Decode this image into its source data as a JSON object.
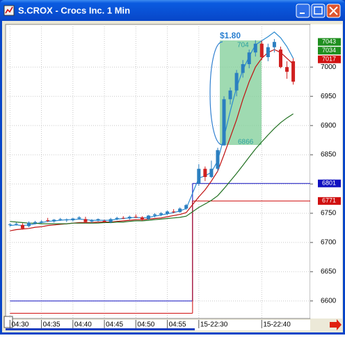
{
  "chart_data": {
    "type": "candlestick",
    "title": "S.CROX - Crocs Inc. 1 Min",
    "x": [
      0,
      1,
      2,
      3,
      4,
      5,
      6,
      7,
      8,
      9,
      10,
      11,
      12,
      13,
      14,
      15,
      16,
      17,
      18,
      19,
      20,
      21,
      22,
      23,
      24,
      25,
      26,
      27,
      28,
      30,
      31,
      32,
      33,
      34,
      35,
      36,
      37,
      38,
      39,
      40,
      41,
      42,
      43,
      44,
      45
    ],
    "open": [
      6730,
      6731,
      6730,
      6728,
      6733,
      6735,
      6738,
      6736,
      6739,
      6738,
      6738,
      6741,
      6740,
      6736,
      6738,
      6737,
      6735,
      6740,
      6742,
      6741,
      6744,
      6743,
      6740,
      6746,
      6748,
      6749,
      6753,
      6752,
      6758,
      6801,
      6826,
      6812,
      6826,
      6866,
      6945,
      6960,
      6990,
      7005,
      7025,
      7040,
      7017,
      7034,
      7030,
      7000,
      7010
    ],
    "high": [
      6733,
      6734,
      6733,
      6736,
      6737,
      6738,
      6742,
      6740,
      6742,
      6741,
      6742,
      6745,
      6744,
      6740,
      6741,
      6739,
      6742,
      6744,
      6745,
      6746,
      6748,
      6745,
      6747,
      6750,
      6752,
      6755,
      6757,
      6760,
      6766,
      6834,
      6830,
      6840,
      6862,
      6950,
      6965,
      6995,
      7012,
      7030,
      7046,
      7045,
      7040,
      7048,
      7035,
      7010,
      7015
    ],
    "low": [
      6727,
      6729,
      6722,
      6726,
      6731,
      6733,
      6735,
      6734,
      6737,
      6735,
      6736,
      6739,
      6733,
      6734,
      6736,
      6734,
      6733,
      6738,
      6740,
      6739,
      6742,
      6737,
      6739,
      6743,
      6745,
      6747,
      6750,
      6751,
      6756,
      6797,
      6805,
      6810,
      6822,
      6866,
      6936,
      6950,
      6982,
      6998,
      7018,
      7012,
      7010,
      7025,
      6998,
      6980,
      6970
    ],
    "close": [
      6731,
      6732,
      6724,
      6734,
      6735,
      6736,
      6737,
      6739,
      6740,
      6739,
      6741,
      6743,
      6735,
      6738,
      6740,
      6735,
      6740,
      6742,
      6741,
      6744,
      6743,
      6740,
      6746,
      6748,
      6750,
      6753,
      6752,
      6758,
      6764,
      6826,
      6812,
      6826,
      6858,
      6945,
      6960,
      6990,
      7005,
      7025,
      7040,
      7017,
      7034,
      7043,
      7000,
      6992,
      6975
    ],
    "up_color": "#2b7fc0",
    "down_color": "#d02020",
    "series": [
      {
        "color": "#2a8ad0",
        "values": [
          6729,
          6730,
          6729,
          6730,
          6732,
          6734,
          6736,
          6737,
          6738,
          6739,
          6739,
          6740,
          6739,
          6738,
          6738,
          6738,
          6738,
          6740,
          6741,
          6742,
          6743,
          6742,
          6743,
          6745,
          6747,
          6749,
          6751,
          6754,
          6758,
          6810,
          6814,
          6820,
          6840,
          6880,
          6925,
          6965,
          6995,
          7018,
          7038,
          7045,
          7052,
          7060,
          7050,
          7035,
          7015
        ]
      },
      {
        "color": "#c01010",
        "values": [
          6720,
          6722,
          6723,
          6724,
          6726,
          6727,
          6729,
          6730,
          6731,
          6732,
          6733,
          6734,
          6734,
          6734,
          6735,
          6735,
          6735,
          6736,
          6737,
          6738,
          6739,
          6739,
          6740,
          6741,
          6742,
          6744,
          6746,
          6748,
          6751,
          6778,
          6790,
          6805,
          6822,
          6850,
          6880,
          6910,
          6945,
          6975,
          7000,
          7015,
          7025,
          7030,
          7025,
          7015,
          7005
        ]
      },
      {
        "color": "#207020",
        "values": [
          6736,
          6735,
          6734,
          6733,
          6733,
          6732,
          6732,
          6732,
          6732,
          6732,
          6733,
          6733,
          6733,
          6733,
          6733,
          6734,
          6734,
          6735,
          6735,
          6736,
          6737,
          6737,
          6738,
          6739,
          6740,
          6741,
          6742,
          6743,
          6745,
          6760,
          6766,
          6772,
          6780,
          6792,
          6805,
          6818,
          6832,
          6846,
          6860,
          6872,
          6884,
          6895,
          6905,
          6913,
          6920
        ]
      }
    ],
    "levels": [
      {
        "color": "#1010c0",
        "x": [
          0,
          29
        ],
        "values": [
          6600,
          6801
        ]
      },
      {
        "color": "#d01010",
        "x": [
          0,
          29
        ],
        "values": [
          6579,
          6771
        ]
      }
    ],
    "price_labels": [
      {
        "value": 7043,
        "color": "#1f8f1f"
      },
      {
        "value": 7034,
        "color": "#1f8f1f"
      },
      {
        "value": 7017,
        "color": "#d01010"
      },
      {
        "value": 6801,
        "color": "#1010c0"
      },
      {
        "value": 6771,
        "color": "#d01010"
      }
    ],
    "annotations": [
      "$1.80",
      "704",
      "6866"
    ],
    "xlim": [
      -0.7,
      47.7
    ],
    "xticks": [
      {
        "value": 0,
        "label": "04:30"
      },
      {
        "value": 5,
        "label": "04:35"
      },
      {
        "value": 10,
        "label": "04:40"
      },
      {
        "value": 15,
        "label": "04:45"
      },
      {
        "value": 20,
        "label": "04:50"
      },
      {
        "value": 25,
        "label": "04:55"
      },
      {
        "value": 30,
        "label": "15-22:30"
      },
      {
        "value": 40,
        "label": "15-22:40"
      }
    ],
    "ylim": [
      6570,
      7073
    ],
    "yticks": [
      6600,
      6650,
      6700,
      6750,
      6800,
      6850,
      6900,
      6950,
      7000
    ],
    "grid": true
  }
}
